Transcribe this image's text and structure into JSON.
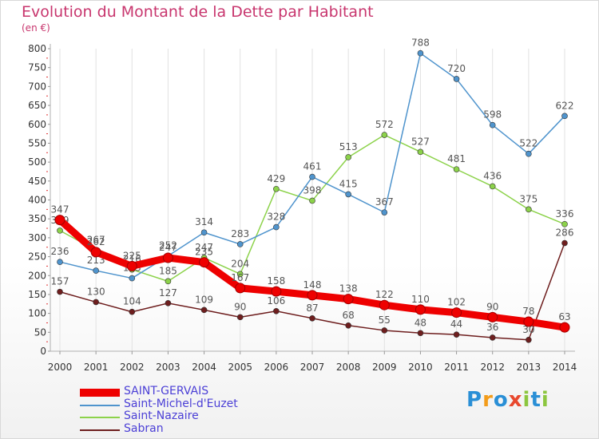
{
  "page": {
    "title": "Evolution du Montant de la Dette par Habitant",
    "subtitle": "(en €)",
    "logo": {
      "text": "Proxiti",
      "colors": [
        "#2a8fd6",
        "#f39c1a",
        "#2a8fd6",
        "#e8482e",
        "#8cc63f",
        "#2a8fd6",
        "#8cc63f"
      ]
    }
  },
  "chart_data": {
    "type": "line",
    "title": "Evolution du Montant de la Dette par Habitant",
    "ylabel": "(en €)",
    "xlabel": "",
    "ylim": [
      0,
      800
    ],
    "yticks": [
      0,
      50,
      100,
      150,
      200,
      250,
      300,
      350,
      400,
      450,
      500,
      550,
      600,
      650,
      700,
      750,
      800
    ],
    "x": [
      "2000",
      "2001",
      "2002",
      "2003",
      "2004",
      "2005",
      "2006",
      "2007",
      "2008",
      "2009",
      "2010",
      "2011",
      "2012",
      "2013",
      "2014"
    ],
    "grid": "vertical",
    "legend_position": "bottom-left",
    "series": [
      {
        "name": "Saint-Nazaire",
        "color": "#8cd24a",
        "values": [
          319,
          267,
          216,
          185,
          247,
          204,
          429,
          398,
          513,
          572,
          527,
          481,
          436,
          375,
          336
        ]
      },
      {
        "name": "Saint-Michel-d'Euzet",
        "color": "#4f94cd",
        "values": [
          236,
          213,
          193,
          252,
          314,
          283,
          328,
          461,
          415,
          367,
          788,
          720,
          598,
          522,
          622
        ]
      },
      {
        "name": "Sabran",
        "color": "#6e1e1e",
        "values": [
          157,
          130,
          104,
          127,
          109,
          90,
          106,
          87,
          68,
          55,
          48,
          44,
          36,
          30,
          286
        ]
      },
      {
        "name": "SAINT-GERVAIS",
        "color": "#ee0000",
        "values": [
          347,
          262,
          225,
          247,
          235,
          167,
          158,
          148,
          138,
          122,
          110,
          102,
          90,
          78,
          63
        ]
      }
    ],
    "legend_order": [
      "SAINT-GERVAIS",
      "Saint-Michel-d'Euzet",
      "Saint-Nazaire",
      "Sabran"
    ]
  }
}
